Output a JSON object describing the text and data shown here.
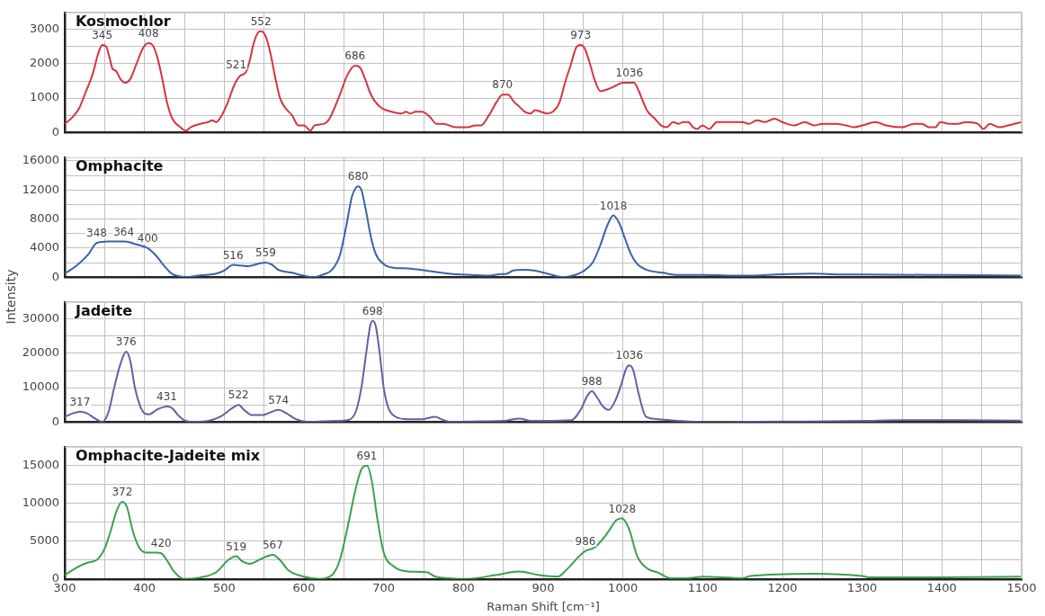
{
  "chart_data": [
    {
      "type": "line",
      "title": "Kosmochlor",
      "tick_labels": "y",
      "grid": true,
      "xlim": [
        300,
        1500
      ],
      "xticks": [
        300,
        {
          "value": 350,
          "label": null
        },
        400,
        {
          "value": 450,
          "label": null
        },
        500,
        {
          "value": 550,
          "label": null
        },
        600,
        {
          "value": 650,
          "label": null
        },
        700,
        {
          "value": 750,
          "label": null
        },
        800,
        {
          "value": 850,
          "label": null
        },
        900,
        {
          "value": 950,
          "label": null
        },
        1000,
        {
          "value": 1050,
          "label": null
        },
        1100,
        {
          "value": 1150,
          "label": null
        },
        1200,
        {
          "value": 1250,
          "label": null
        },
        1300,
        {
          "value": 1350,
          "label": null
        },
        1400,
        {
          "value": 1450,
          "label": null
        },
        1500
      ],
      "ylim": [
        0,
        3500
      ],
      "yticks": [
        0,
        {
          "value": 500,
          "label": null
        },
        1000,
        {
          "value": 1500,
          "label": null
        },
        2000,
        {
          "value": 2500,
          "label": null
        },
        3000,
        {
          "value": 3500,
          "label": null
        }
      ],
      "series": [
        {
          "color": "#d6343f",
          "x": [
            300,
            310,
            318,
            325,
            335,
            342,
            347,
            352,
            356,
            360,
            364,
            370,
            376,
            382,
            390,
            398,
            405,
            410,
            416,
            422,
            428,
            435,
            445,
            452,
            458,
            470,
            480,
            485,
            490,
            497,
            505,
            512,
            520,
            527,
            532,
            537,
            542,
            546,
            552,
            558,
            564,
            570,
            577,
            585,
            593,
            600,
            608,
            613,
            625,
            632,
            645,
            655,
            664,
            670,
            676,
            684,
            695,
            710,
            722,
            728,
            733,
            740,
            748,
            758,
            766,
            775,
            790,
            805,
            815,
            822,
            832,
            842,
            849,
            856,
            863,
            870,
            877,
            884,
            890,
            897,
            905,
            912,
            920,
            928,
            935,
            942,
            947,
            952,
            958,
            965,
            972,
            980,
            990,
            1000,
            1008,
            1014,
            1020,
            1030,
            1040,
            1048,
            1055,
            1063,
            1070,
            1075,
            1082,
            1088,
            1093,
            1100,
            1108,
            1118,
            1130,
            1145,
            1150,
            1158,
            1168,
            1178,
            1190,
            1200,
            1215,
            1228,
            1240,
            1250,
            1268,
            1280,
            1290,
            1300,
            1317,
            1330,
            1350,
            1365,
            1375,
            1384,
            1392,
            1398,
            1410,
            1420,
            1430,
            1445,
            1452,
            1460,
            1472,
            1483,
            1500
          ],
          "values": [
            250,
            450,
            700,
            1100,
            1700,
            2300,
            2550,
            2500,
            2200,
            1850,
            1800,
            1550,
            1450,
            1550,
            2000,
            2450,
            2600,
            2550,
            2200,
            1600,
            900,
            400,
            150,
            50,
            150,
            250,
            300,
            350,
            300,
            500,
            900,
            1350,
            1650,
            1750,
            2100,
            2600,
            2900,
            2950,
            2800,
            2300,
            1600,
            1000,
            700,
            500,
            200,
            200,
            50,
            200,
            250,
            400,
            1100,
            1700,
            1950,
            1900,
            1600,
            1100,
            750,
            600,
            550,
            600,
            550,
            600,
            600,
            450,
            250,
            250,
            150,
            150,
            200,
            200,
            500,
            900,
            1100,
            1100,
            900,
            750,
            600,
            550,
            650,
            600,
            550,
            600,
            850,
            1500,
            2000,
            2500,
            2550,
            2450,
            2050,
            1500,
            1200,
            1250,
            1350,
            1450,
            1450,
            1450,
            1200,
            650,
            400,
            200,
            150,
            300,
            250,
            300,
            300,
            150,
            100,
            200,
            100,
            300,
            300,
            300,
            300,
            250,
            350,
            300,
            400,
            300,
            200,
            300,
            200,
            250,
            250,
            200,
            150,
            200,
            300,
            200,
            150,
            250,
            250,
            150,
            150,
            300,
            250,
            250,
            300,
            250,
            100,
            250,
            150,
            200,
            300
          ]
        }
      ],
      "annotations": [
        {
          "text": "345",
          "x": 347,
          "y": 2550
        },
        {
          "text": "408",
          "x": 405,
          "y": 2600
        },
        {
          "text": "521",
          "x": 515,
          "y": 1700
        },
        {
          "text": "552",
          "x": 546,
          "y": 2950
        },
        {
          "text": "686",
          "x": 664,
          "y": 1950
        },
        {
          "text": "870",
          "x": 849,
          "y": 1100
        },
        {
          "text": "973",
          "x": 947,
          "y": 2550
        },
        {
          "text": "1036",
          "x": 1008,
          "y": 1450
        }
      ]
    },
    {
      "type": "line",
      "title": "Omphacite",
      "ylabel": "Intensity",
      "tick_labels": "y",
      "grid": true,
      "xlim": [
        300,
        1500
      ],
      "xticks": [
        300,
        {
          "value": 350,
          "label": null
        },
        400,
        {
          "value": 450,
          "label": null
        },
        500,
        {
          "value": 550,
          "label": null
        },
        600,
        {
          "value": 650,
          "label": null
        },
        700,
        {
          "value": 750,
          "label": null
        },
        800,
        {
          "value": 850,
          "label": null
        },
        900,
        {
          "value": 950,
          "label": null
        },
        1000,
        {
          "value": 1050,
          "label": null
        },
        1100,
        {
          "value": 1150,
          "label": null
        },
        1200,
        {
          "value": 1250,
          "label": null
        },
        1300,
        {
          "value": 1350,
          "label": null
        },
        1400,
        {
          "value": 1450,
          "label": null
        },
        1500
      ],
      "ylim": [
        0,
        16500
      ],
      "yticks": [
        0,
        {
          "value": 2000,
          "label": null
        },
        4000,
        {
          "value": 6000,
          "label": null
        },
        8000,
        {
          "value": 10000,
          "label": null
        },
        12000,
        {
          "value": 14000,
          "label": null
        },
        16000
      ],
      "series": [
        {
          "color": "#3a62a8",
          "x": [
            300,
            315,
            330,
            340,
            355,
            375,
            390,
            404,
            415,
            425,
            435,
            445,
            451,
            470,
            490,
            500,
            511,
            520,
            530,
            545,
            552,
            560,
            568,
            585,
            600,
            612,
            625,
            635,
            645,
            653,
            660,
            665,
            668,
            672,
            678,
            684,
            690,
            700,
            712,
            730,
            760,
            790,
            810,
            830,
            845,
            855,
            862,
            875,
            890,
            905,
            925,
            940,
            950,
            962,
            972,
            980,
            988,
            995,
            1002,
            1010,
            1018,
            1030,
            1050,
            1070,
            1100,
            1150,
            1200,
            1238,
            1260,
            1300,
            1400,
            1500
          ],
          "values": [
            500,
            1600,
            3200,
            4700,
            4900,
            4900,
            4500,
            4000,
            2900,
            1500,
            400,
            100,
            0,
            250,
            500,
            900,
            1700,
            1600,
            1500,
            1900,
            2000,
            1700,
            1000,
            600,
            200,
            0,
            400,
            1000,
            3000,
            7000,
            11000,
            12300,
            12500,
            12000,
            9000,
            5500,
            3200,
            1800,
            1300,
            1200,
            800,
            400,
            300,
            200,
            400,
            500,
            900,
            1000,
            900,
            500,
            0,
            300,
            800,
            2000,
            4500,
            7000,
            8500,
            7500,
            5500,
            3200,
            1800,
            1000,
            600,
            300,
            300,
            200,
            400,
            500,
            400,
            350,
            300,
            200
          ]
        }
      ],
      "annotations": [
        {
          "text": "348",
          "x": 340,
          "y": 4700
        },
        {
          "text": "364",
          "x": 374,
          "y": 4900
        },
        {
          "text": "400",
          "x": 404,
          "y": 4000
        },
        {
          "text": "516",
          "x": 511,
          "y": 1700
        },
        {
          "text": "559",
          "x": 552,
          "y": 2000
        },
        {
          "text": "680",
          "x": 668,
          "y": 12500
        },
        {
          "text": "1018",
          "x": 988,
          "y": 8500
        }
      ]
    },
    {
      "type": "line",
      "title": "Jadeite",
      "tick_labels": "y",
      "grid": true,
      "xlim": [
        300,
        1500
      ],
      "xticks": [
        300,
        {
          "value": 350,
          "label": null
        },
        400,
        {
          "value": 450,
          "label": null
        },
        500,
        {
          "value": 550,
          "label": null
        },
        600,
        {
          "value": 650,
          "label": null
        },
        700,
        {
          "value": 750,
          "label": null
        },
        800,
        {
          "value": 850,
          "label": null
        },
        900,
        {
          "value": 950,
          "label": null
        },
        1000,
        {
          "value": 1050,
          "label": null
        },
        1100,
        {
          "value": 1150,
          "label": null
        },
        1200,
        {
          "value": 1250,
          "label": null
        },
        1300,
        {
          "value": 1350,
          "label": null
        },
        1400,
        {
          "value": 1450,
          "label": null
        },
        1500
      ],
      "ylim": [
        0,
        35000
      ],
      "yticks": [
        0,
        {
          "value": 5000,
          "label": null
        },
        10000,
        {
          "value": 15000,
          "label": null
        },
        20000,
        {
          "value": 25000,
          "label": null
        },
        30000,
        {
          "value": 35000,
          "label": null
        }
      ],
      "series": [
        {
          "color": "#6e5aa3",
          "x": [
            300,
            310,
            319,
            328,
            338,
            347,
            355,
            362,
            370,
            377,
            382,
            388,
            394,
            400,
            406,
            415,
            428,
            435,
            442,
            450,
            460,
            480,
            495,
            510,
            518,
            525,
            535,
            548,
            560,
            568,
            578,
            590,
            605,
            640,
            655,
            665,
            672,
            678,
            683,
            686,
            690,
            695,
            700,
            706,
            715,
            730,
            748,
            765,
            772,
            785,
            820,
            850,
            870,
            885,
            900,
            935,
            948,
            955,
            961,
            968,
            975,
            982,
            990,
            998,
            1004,
            1008,
            1013,
            1020,
            1029,
            1045,
            1070,
            1100,
            1200,
            1300,
            1350,
            1400,
            1500
          ],
          "values": [
            1500,
            2500,
            3000,
            2500,
            1000,
            0,
            3000,
            10000,
            17000,
            20500,
            18000,
            10000,
            5000,
            2500,
            2200,
            3500,
            4500,
            4000,
            2000,
            500,
            0,
            300,
            1500,
            4000,
            5000,
            3500,
            2000,
            2000,
            3000,
            3500,
            2500,
            800,
            0,
            300,
            500,
            3000,
            10000,
            20000,
            28000,
            29500,
            28000,
            20000,
            10000,
            4000,
            1500,
            800,
            800,
            1500,
            800,
            0,
            200,
            300,
            1000,
            300,
            300,
            500,
            4000,
            7500,
            9000,
            7000,
            4500,
            3500,
            6000,
            11000,
            15500,
            16500,
            15000,
            8000,
            1500,
            800,
            300,
            0,
            100,
            300,
            500,
            500,
            400
          ]
        }
      ],
      "annotations": [
        {
          "text": "317",
          "x": 319,
          "y": 3000
        },
        {
          "text": "376",
          "x": 377,
          "y": 20500
        },
        {
          "text": "431",
          "x": 428,
          "y": 4500
        },
        {
          "text": "522",
          "x": 518,
          "y": 5000
        },
        {
          "text": "574",
          "x": 568,
          "y": 3500
        },
        {
          "text": "698",
          "x": 686,
          "y": 29500
        },
        {
          "text": "988",
          "x": 961,
          "y": 9000
        },
        {
          "text": "1036",
          "x": 1008,
          "y": 16500
        }
      ]
    },
    {
      "type": "line",
      "title": "Omphacite-Jadeite mix",
      "xlabel": "Raman Shift [cm⁻¹]",
      "grid": true,
      "xlim": [
        300,
        1500
      ],
      "xticks": [
        300,
        {
          "value": 350,
          "label": null
        },
        400,
        {
          "value": 450,
          "label": null
        },
        500,
        {
          "value": 550,
          "label": null
        },
        600,
        {
          "value": 650,
          "label": null
        },
        700,
        {
          "value": 750,
          "label": null
        },
        800,
        {
          "value": 850,
          "label": null
        },
        900,
        {
          "value": 950,
          "label": null
        },
        1000,
        {
          "value": 1050,
          "label": null
        },
        1100,
        {
          "value": 1150,
          "label": null
        },
        1200,
        {
          "value": 1250,
          "label": null
        },
        1300,
        {
          "value": 1350,
          "label": null
        },
        1400,
        {
          "value": 1450,
          "label": null
        },
        1500
      ],
      "ylim": [
        0,
        17500
      ],
      "yticks": [
        0,
        {
          "value": 2500,
          "label": null
        },
        5000,
        {
          "value": 7500,
          "label": null
        },
        10000,
        {
          "value": 12500,
          "label": null
        },
        15000,
        {
          "value": 17500,
          "label": null
        }
      ],
      "series": [
        {
          "color": "#3aa14e",
          "x": [
            300,
            315,
            330,
            340,
            350,
            358,
            365,
            372,
            378,
            385,
            393,
            402,
            415,
            421,
            428,
            437,
            449,
            470,
            490,
            505,
            515,
            523,
            532,
            545,
            561,
            570,
            580,
            600,
            619,
            635,
            645,
            655,
            665,
            672,
            679,
            685,
            692,
            700,
            712,
            730,
            754,
            765,
            803,
            840,
            870,
            895,
            918,
            930,
            945,
            953,
            965,
            980,
            992,
            999,
            1008,
            1018,
            1029,
            1045,
            1060,
            1080,
            1100,
            1150,
            1160,
            1238,
            1300,
            1310,
            1400,
            1500
          ],
          "values": [
            500,
            1500,
            2200,
            2500,
            4000,
            6500,
            9000,
            10200,
            9500,
            6500,
            4200,
            3500,
            3500,
            3400,
            2500,
            1000,
            0,
            200,
            900,
            2500,
            3000,
            2300,
            2000,
            2600,
            3200,
            2500,
            1200,
            300,
            0,
            500,
            2500,
            7000,
            12000,
            14500,
            15000,
            13000,
            8000,
            3500,
            1700,
            1000,
            900,
            300,
            0,
            500,
            1000,
            500,
            300,
            1300,
            3000,
            3700,
            4200,
            6000,
            7800,
            8000,
            6500,
            3000,
            1500,
            800,
            100,
            100,
            300,
            100,
            400,
            700,
            400,
            200,
            200,
            300
          ]
        }
      ],
      "annotations": [
        {
          "text": "372",
          "x": 372,
          "y": 10200
        },
        {
          "text": "420",
          "x": 421,
          "y": 3500
        },
        {
          "text": "519",
          "x": 515,
          "y": 3000
        },
        {
          "text": "567",
          "x": 561,
          "y": 3200
        },
        {
          "text": "691",
          "x": 679,
          "y": 15000
        },
        {
          "text": "986",
          "x": 953,
          "y": 3700
        },
        {
          "text": "1028",
          "x": 999,
          "y": 8000
        }
      ]
    }
  ]
}
